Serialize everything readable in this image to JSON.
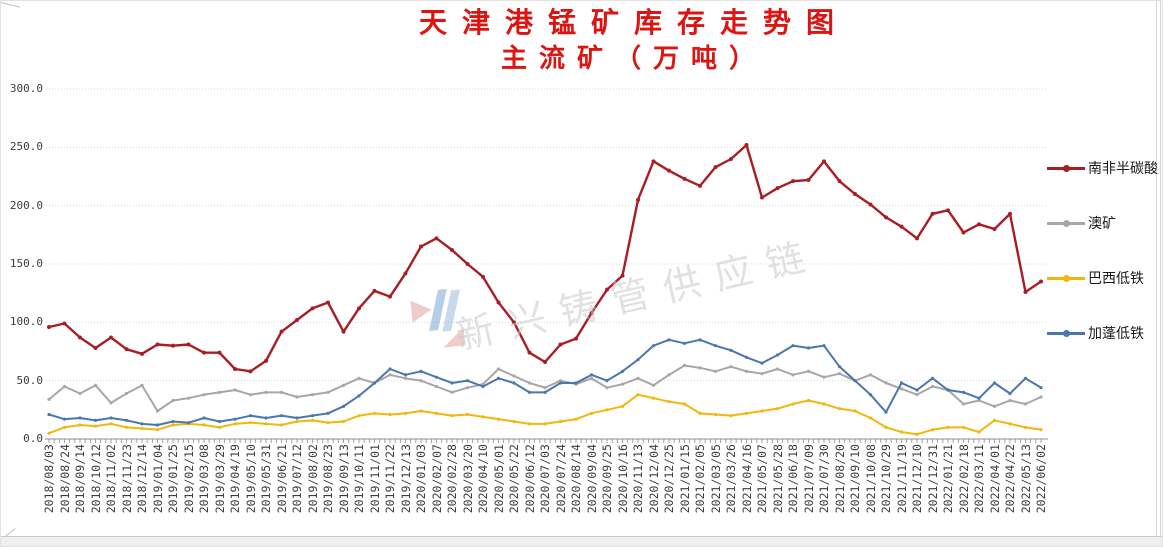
{
  "title": {
    "line1": "天津港锰矿库存走势图",
    "line2": "主流矿（万吨）"
  },
  "colors": {
    "title": "#dd1512",
    "gridline": "#d9d9d9",
    "axis": "#8c8c8c",
    "series_red": "#a81e24",
    "series_gray": "#a7a7a7",
    "series_yellow": "#f2b70d",
    "series_blue": "#4b77ab"
  },
  "watermark": {
    "text": "新兴铸管供应链"
  },
  "chart_data": {
    "type": "line",
    "title": "天津港锰矿库存走势图 主流矿（万吨）",
    "xlabel": "",
    "ylabel": "",
    "ylim": [
      0,
      300
    ],
    "y_tick_step": 50,
    "y_tick_labels": [
      "0.0",
      "50.0",
      "100.0",
      "150.0",
      "200.0",
      "250.0",
      "300.0"
    ],
    "grid": true,
    "legend_position": "right",
    "x_labels": [
      "2018/08/03",
      "2018/08/24",
      "2018/09/14",
      "2018/10/12",
      "2018/11/02",
      "2018/11/23",
      "2018/12/14",
      "2019/01/04",
      "2019/01/25",
      "2019/02/15",
      "2019/03/08",
      "2019/03/29",
      "2019/04/19",
      "2019/05/10",
      "2019/05/31",
      "2019/06/21",
      "2019/07/12",
      "2019/08/02",
      "2019/08/23",
      "2019/09/13",
      "2019/10/11",
      "2019/11/01",
      "2019/11/22",
      "2019/12/13",
      "2020/01/03",
      "2020/02/07",
      "2020/02/28",
      "2020/03/20",
      "2020/04/10",
      "2020/05/01",
      "2020/05/22",
      "2020/06/12",
      "2020/07/03",
      "2020/07/24",
      "2020/08/14",
      "2020/09/04",
      "2020/09/25",
      "2020/10/16",
      "2020/11/13",
      "2020/12/04",
      "2020/12/25",
      "2021/01/15",
      "2021/02/05",
      "2021/03/05",
      "2021/03/26",
      "2021/04/16",
      "2021/05/07",
      "2021/05/28",
      "2021/06/18",
      "2021/07/09",
      "2021/07/30",
      "2021/08/20",
      "2021/09/10",
      "2021/10/08",
      "2021/10/29",
      "2021/11/19",
      "2021/12/10",
      "2021/12/31",
      "2022/01/21",
      "2022/02/18",
      "2022/03/11",
      "2022/04/01",
      "2022/04/22",
      "2022/05/13",
      "2022/06/02"
    ],
    "series": [
      {
        "key": "south-africa-semi-carbonate",
        "name": "南非半碳酸",
        "color": "#a81e24",
        "values": [
          96,
          99,
          87,
          78,
          87,
          77,
          73,
          81,
          80,
          81,
          74,
          74,
          60,
          58,
          67,
          92,
          102,
          112,
          117,
          92,
          112,
          127,
          122,
          142,
          165,
          172,
          162,
          150,
          139,
          117,
          100,
          74,
          66,
          81,
          86,
          108,
          128,
          140,
          205,
          238,
          230,
          223,
          217,
          233,
          240,
          252,
          207,
          215,
          221,
          222,
          238,
          221,
          210,
          201,
          190,
          182,
          172,
          193,
          196,
          177,
          184,
          180,
          193,
          126,
          135
        ]
      },
      {
        "key": "australian-ore",
        "name": "澳矿",
        "color": "#a7a7a7",
        "values": [
          34,
          45,
          39,
          46,
          31,
          39,
          46,
          24,
          33,
          35,
          38,
          40,
          42,
          38,
          40,
          40,
          36,
          38,
          40,
          46,
          52,
          48,
          55,
          52,
          50,
          45,
          40,
          44,
          47,
          60,
          54,
          48,
          44,
          50,
          47,
          52,
          44,
          47,
          52,
          46,
          55,
          63,
          61,
          58,
          62,
          58,
          56,
          60,
          55,
          58,
          53,
          56,
          50,
          55,
          48,
          43,
          38,
          45,
          42,
          30,
          33,
          28,
          33,
          30,
          36
        ]
      },
      {
        "key": "brazil-low-iron",
        "name": "巴西低铁",
        "color": "#f2b70d",
        "values": [
          5,
          10,
          12,
          11,
          13,
          10,
          9,
          8,
          12,
          13,
          12,
          10,
          13,
          14,
          13,
          12,
          15,
          16,
          14,
          15,
          20,
          22,
          21,
          22,
          24,
          22,
          20,
          21,
          19,
          17,
          15,
          13,
          13,
          15,
          17,
          22,
          25,
          28,
          38,
          35,
          32,
          30,
          22,
          21,
          20,
          22,
          24,
          26,
          30,
          33,
          30,
          26,
          24,
          18,
          10,
          6,
          4,
          8,
          10,
          10,
          6,
          16,
          13,
          10,
          8
        ]
      },
      {
        "key": "gabon-low-iron",
        "name": "加蓬低铁",
        "color": "#4b77ab",
        "values": [
          21,
          17,
          18,
          16,
          18,
          16,
          13,
          12,
          15,
          14,
          18,
          15,
          17,
          20,
          18,
          20,
          18,
          20,
          22,
          28,
          37,
          48,
          60,
          55,
          58,
          53,
          48,
          50,
          45,
          52,
          48,
          40,
          40,
          48,
          48,
          55,
          50,
          58,
          68,
          80,
          85,
          82,
          85,
          80,
          76,
          70,
          65,
          72,
          80,
          78,
          80,
          62,
          50,
          38,
          23,
          48,
          42,
          52,
          42,
          40,
          35,
          48,
          39,
          52,
          44
        ]
      }
    ]
  }
}
